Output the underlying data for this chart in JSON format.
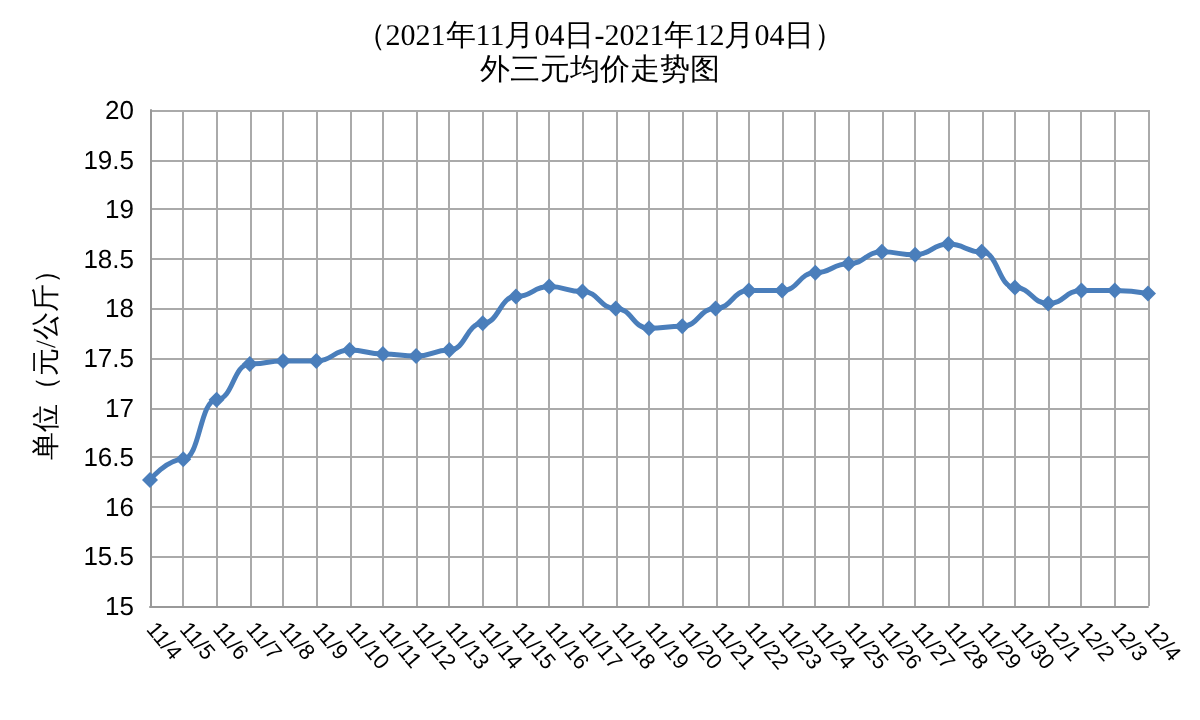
{
  "chart_data": {
    "type": "line",
    "title": "（2021年11月04日-2021年12月04日）",
    "subtitle": "外三元均价走势图",
    "ylabel": "单位（元/公斤）",
    "categories": [
      "11/4",
      "11/5",
      "11/6",
      "11/7",
      "11/8",
      "11/9",
      "11/10",
      "11/11",
      "11/12",
      "11/13",
      "11/14",
      "11/15",
      "11/16",
      "11/17",
      "11/18",
      "11/19",
      "11/20",
      "11/21",
      "11/22",
      "11/23",
      "11/24",
      "11/25",
      "11/26",
      "11/27",
      "11/28",
      "11/29",
      "11/30",
      "12/1",
      "12/2",
      "12/3",
      "12/4"
    ],
    "series": [
      {
        "color": "#4a7ebb",
        "values": [
          16.27,
          16.48,
          17.08,
          17.44,
          17.47,
          17.47,
          17.58,
          17.54,
          17.52,
          17.58,
          17.85,
          18.12,
          18.22,
          18.17,
          18.0,
          17.8,
          17.82,
          18.0,
          18.18,
          18.18,
          18.36,
          18.45,
          18.57,
          18.54,
          18.65,
          18.57,
          18.21,
          18.05,
          18.18,
          18.18,
          18.15
        ]
      }
    ],
    "ylim": [
      15,
      20
    ],
    "yticks": [
      15,
      15.5,
      16,
      16.5,
      17,
      17.5,
      18,
      18.5,
      19,
      19.5,
      20
    ],
    "grid": true,
    "marker": "diamond",
    "line_style": "solid"
  }
}
